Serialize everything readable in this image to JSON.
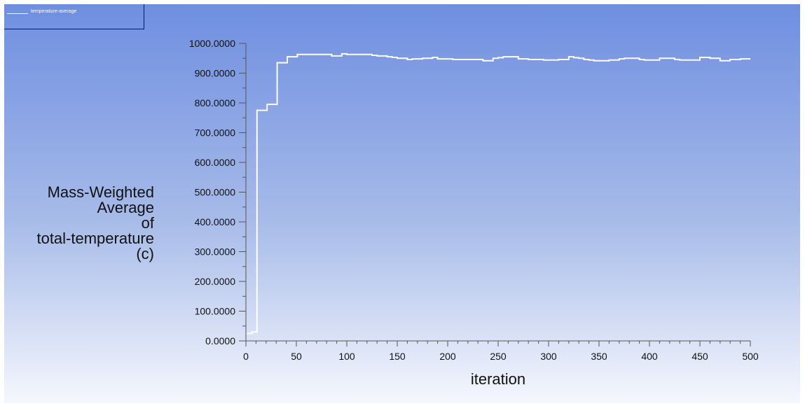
{
  "legend": {
    "entries": [
      "temperature-average"
    ],
    "line_color": "#ffffff"
  },
  "colors": {
    "background_top": "#6e8ee0",
    "background_bottom": "#f5f7fd",
    "series": "#ffffff",
    "axis": "#555555"
  },
  "chart_data": {
    "type": "line",
    "title": "",
    "xlabel": "iteration",
    "ylabel_lines": [
      "Mass-Weighted",
      "Average",
      "of",
      "total-temperature",
      "(c)"
    ],
    "xlim": [
      0,
      500
    ],
    "ylim": [
      0,
      1000
    ],
    "x_ticks": [
      "0",
      "50",
      "100",
      "150",
      "200",
      "250",
      "300",
      "350",
      "400",
      "450",
      "500"
    ],
    "y_ticks": [
      "0.0000",
      "100.0000",
      "200.0000",
      "300.0000",
      "400.0000",
      "500.0000",
      "600.0000",
      "700.0000",
      "800.0000",
      "900.0000",
      "1000.0000"
    ],
    "grid": false,
    "legend_position": "top-left",
    "series": [
      {
        "name": "temperature-average",
        "color": "#ffffff",
        "x": [
          1,
          2,
          4,
          6,
          8,
          10,
          11,
          12,
          14,
          16,
          18,
          20,
          21,
          22,
          24,
          26,
          28,
          30,
          31,
          32,
          34,
          36,
          38,
          40,
          41,
          42,
          44,
          46,
          48,
          50,
          51,
          52,
          54,
          56,
          58,
          60,
          65,
          70,
          75,
          80,
          85,
          90,
          95,
          100,
          105,
          110,
          115,
          120,
          125,
          130,
          135,
          140,
          145,
          150,
          155,
          160,
          165,
          170,
          175,
          180,
          185,
          190,
          195,
          200,
          205,
          210,
          215,
          220,
          225,
          230,
          235,
          240,
          245,
          250,
          255,
          260,
          265,
          270,
          275,
          280,
          285,
          290,
          295,
          300,
          305,
          310,
          315,
          320,
          325,
          330,
          335,
          340,
          345,
          350,
          355,
          360,
          365,
          370,
          375,
          380,
          385,
          390,
          395,
          400,
          405,
          410,
          415,
          420,
          425,
          430,
          435,
          440,
          445,
          450,
          455,
          460,
          465,
          470,
          475,
          480,
          485,
          490,
          495,
          500
        ],
        "y": [
          25,
          25,
          25,
          30,
          30,
          30,
          775,
          775,
          775,
          775,
          775,
          775,
          795,
          795,
          795,
          795,
          795,
          795,
          935,
          935,
          935,
          935,
          935,
          935,
          955,
          955,
          955,
          955,
          955,
          955,
          963,
          963,
          963,
          963,
          963,
          963,
          963,
          963,
          963,
          963,
          958,
          958,
          965,
          963,
          963,
          963,
          963,
          963,
          960,
          958,
          958,
          955,
          953,
          950,
          950,
          946,
          948,
          948,
          950,
          950,
          953,
          948,
          948,
          948,
          946,
          946,
          946,
          946,
          946,
          946,
          942,
          942,
          950,
          952,
          955,
          955,
          955,
          948,
          948,
          946,
          946,
          946,
          944,
          944,
          944,
          946,
          946,
          955,
          952,
          950,
          946,
          944,
          942,
          942,
          942,
          944,
          944,
          948,
          950,
          950,
          950,
          946,
          944,
          944,
          944,
          950,
          950,
          950,
          946,
          944,
          944,
          944,
          944,
          953,
          953,
          950,
          950,
          942,
          942,
          946,
          946,
          948,
          948,
          948
        ]
      }
    ]
  }
}
